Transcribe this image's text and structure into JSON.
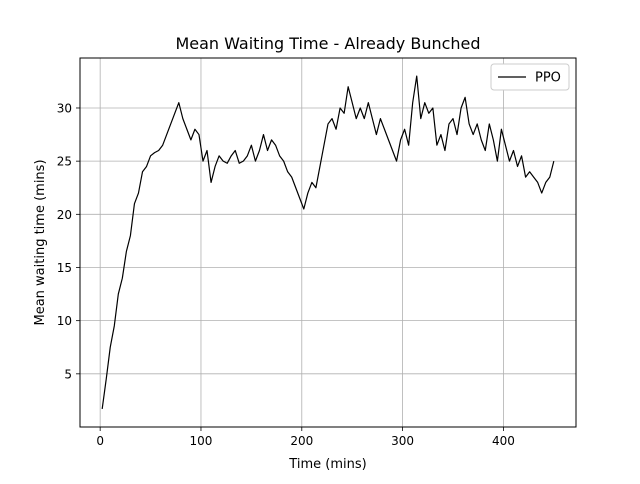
{
  "chart_data": {
    "type": "line",
    "title": "Mean Waiting Time - Already Bunched",
    "xlabel": "Time (mins)",
    "ylabel": "Mean waiting time (mins)",
    "xlim": [
      -20,
      472
    ],
    "ylim": [
      0.0,
      34.7
    ],
    "xticks": [
      0,
      100,
      200,
      300,
      400
    ],
    "yticks": [
      5,
      10,
      15,
      20,
      25,
      30
    ],
    "grid": true,
    "legend_position": "top-right",
    "series": [
      {
        "name": "PPO",
        "color": "#000000",
        "x": [
          2,
          6,
          10,
          14,
          18,
          22,
          26,
          30,
          34,
          38,
          42,
          46,
          50,
          54,
          58,
          62,
          66,
          70,
          74,
          78,
          82,
          86,
          90,
          94,
          98,
          102,
          106,
          110,
          114,
          118,
          122,
          126,
          130,
          134,
          138,
          142,
          146,
          150,
          154,
          158,
          162,
          166,
          170,
          174,
          178,
          182,
          186,
          190,
          194,
          198,
          202,
          206,
          210,
          214,
          218,
          222,
          226,
          230,
          234,
          238,
          242,
          246,
          250,
          254,
          258,
          262,
          266,
          270,
          274,
          278,
          282,
          286,
          290,
          294,
          298,
          302,
          306,
          310,
          314,
          318,
          322,
          326,
          330,
          334,
          338,
          342,
          346,
          350,
          354,
          358,
          362,
          366,
          370,
          374,
          378,
          382,
          386,
          390,
          394,
          398,
          402,
          406,
          410,
          414,
          418,
          422,
          426,
          430,
          434,
          438,
          442,
          446,
          450
        ],
        "y": [
          1.7,
          4.5,
          7.5,
          9.5,
          12.5,
          14.0,
          16.5,
          18.0,
          21.0,
          22.0,
          24.0,
          24.5,
          25.5,
          25.8,
          26.0,
          26.5,
          27.5,
          28.5,
          29.5,
          30.5,
          29.0,
          28.0,
          27.0,
          28.0,
          27.5,
          25.0,
          26.0,
          23.0,
          24.5,
          25.5,
          25.0,
          24.8,
          25.5,
          26.0,
          24.8,
          25.0,
          25.5,
          26.5,
          25.0,
          26.0,
          27.5,
          26.0,
          27.0,
          26.5,
          25.5,
          25.0,
          24.0,
          23.5,
          22.5,
          21.5,
          20.5,
          22.0,
          23.0,
          22.5,
          24.5,
          26.5,
          28.5,
          29.0,
          28.0,
          30.0,
          29.5,
          32.0,
          30.5,
          29.0,
          30.0,
          29.0,
          30.5,
          29.0,
          27.5,
          29.0,
          28.0,
          27.0,
          26.0,
          25.0,
          27.0,
          28.0,
          26.5,
          30.5,
          33.0,
          29.0,
          30.5,
          29.5,
          30.0,
          26.5,
          27.5,
          26.0,
          28.5,
          29.0,
          27.5,
          30.0,
          31.0,
          28.5,
          27.5,
          28.5,
          27.0,
          26.0,
          28.5,
          27.0,
          25.0,
          28.0,
          26.5,
          25.0,
          26.0,
          24.5,
          25.5,
          23.5,
          24.0,
          23.5,
          23.0,
          22.0,
          23.0,
          23.5,
          25.0
        ]
      }
    ]
  }
}
